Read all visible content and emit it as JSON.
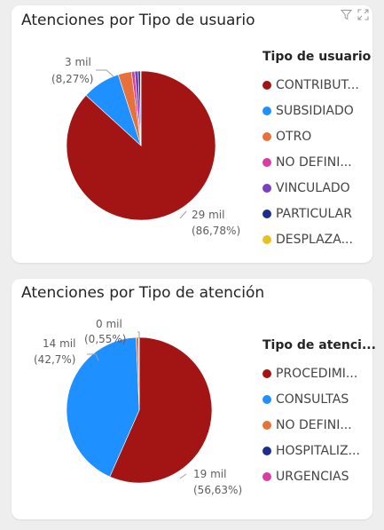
{
  "chart_data": [
    {
      "type": "pie",
      "title": "Atenciones por Tipo de usuario",
      "legend_title": "Tipo de usuario",
      "legend_position": "right",
      "slices": [
        {
          "label": "CONTRIBUT...",
          "percent": 86.78,
          "color": "#a31515"
        },
        {
          "label": "SUBSIDIADO",
          "percent": 8.27,
          "color": "#1e90ff"
        },
        {
          "label": "OTRO",
          "percent": 2.9,
          "color": "#e8703a"
        },
        {
          "label": "NO DEFINI...",
          "percent": 0.7,
          "color": "#d63ea4"
        },
        {
          "label": "VINCULADO",
          "percent": 0.75,
          "color": "#7b3fbf"
        },
        {
          "label": "PARTICULAR",
          "percent": 0.45,
          "color": "#1d2d8f"
        },
        {
          "label": "DESPLAZA...",
          "percent": 0.15,
          "color": "#e6c21f"
        }
      ],
      "data_labels": [
        {
          "value_text": "3 mil",
          "percent_text": "(8,27%)"
        },
        {
          "value_text": "29 mil",
          "percent_text": "(86,78%)"
        }
      ]
    },
    {
      "type": "pie",
      "title": "Atenciones por Tipo de atención",
      "legend_title": "Tipo de atenci...",
      "legend_position": "right",
      "slices": [
        {
          "label": "PROCEDIMI...",
          "percent": 56.63,
          "color": "#a31515"
        },
        {
          "label": "CONSULTAS",
          "percent": 42.7,
          "color": "#1e90ff"
        },
        {
          "label": "NO DEFINI...",
          "percent": 0.55,
          "color": "#e8703a"
        },
        {
          "label": "HOSPITALIZ...",
          "percent": 0.08,
          "color": "#1d2d8f"
        },
        {
          "label": "URGENCIAS",
          "percent": 0.04,
          "color": "#d63ea4"
        }
      ],
      "data_labels": [
        {
          "value_text": "0 mil",
          "percent_text": "(0,55%)"
        },
        {
          "value_text": "14 mil",
          "percent_text": "(42,7%)"
        },
        {
          "value_text": "19 mil",
          "percent_text": "(56,63%)"
        }
      ]
    }
  ]
}
